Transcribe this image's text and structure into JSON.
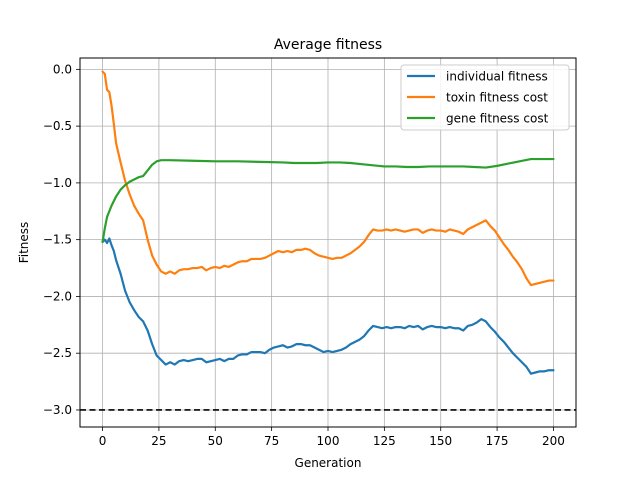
{
  "chart_data": {
    "type": "line",
    "title": "Average fitness",
    "xlabel": "Generation",
    "ylabel": "Fitness",
    "xlim": [
      -10,
      210
    ],
    "ylim": [
      -3.15,
      0.1
    ],
    "xticks": [
      0,
      25,
      50,
      75,
      100,
      125,
      150,
      175,
      200
    ],
    "xtick_labels": [
      "0",
      "25",
      "50",
      "75",
      "100",
      "125",
      "150",
      "175",
      "200"
    ],
    "yticks": [
      0.0,
      -0.5,
      -1.0,
      -1.5,
      -2.0,
      -2.5,
      -3.0
    ],
    "ytick_labels": [
      "0.0",
      "−0.5",
      "−1.0",
      "−1.5",
      "−2.0",
      "−2.5",
      "−3.0"
    ],
    "grid": true,
    "legend_position": "top-right",
    "reference_line": {
      "y": -3.0,
      "style": "dashed",
      "color": "#000000"
    },
    "series": [
      {
        "name": "individual fitness",
        "color": "#1f77b4",
        "x": [
          0,
          1,
          2,
          3,
          4,
          5,
          6,
          8,
          10,
          12,
          14,
          16,
          18,
          20,
          22,
          24,
          26,
          28,
          30,
          32,
          34,
          36,
          38,
          40,
          42,
          44,
          46,
          48,
          50,
          52,
          54,
          56,
          58,
          60,
          62,
          64,
          66,
          68,
          70,
          72,
          74,
          76,
          78,
          80,
          82,
          84,
          86,
          88,
          90,
          92,
          94,
          96,
          98,
          100,
          102,
          104,
          106,
          108,
          110,
          112,
          114,
          116,
          118,
          120,
          122,
          124,
          126,
          128,
          130,
          132,
          134,
          136,
          138,
          140,
          142,
          144,
          146,
          148,
          150,
          152,
          154,
          156,
          158,
          160,
          162,
          164,
          166,
          168,
          170,
          172,
          174,
          176,
          178,
          180,
          182,
          184,
          186,
          188,
          190,
          192,
          194,
          196,
          198,
          200
        ],
        "values": [
          -1.52,
          -1.5,
          -1.53,
          -1.49,
          -1.55,
          -1.6,
          -1.68,
          -1.8,
          -1.95,
          -2.05,
          -2.12,
          -2.18,
          -2.22,
          -2.3,
          -2.42,
          -2.52,
          -2.56,
          -2.6,
          -2.58,
          -2.6,
          -2.57,
          -2.56,
          -2.57,
          -2.56,
          -2.55,
          -2.55,
          -2.58,
          -2.57,
          -2.56,
          -2.55,
          -2.57,
          -2.55,
          -2.55,
          -2.52,
          -2.51,
          -2.51,
          -2.49,
          -2.49,
          -2.49,
          -2.5,
          -2.47,
          -2.45,
          -2.44,
          -2.43,
          -2.45,
          -2.44,
          -2.42,
          -2.42,
          -2.43,
          -2.43,
          -2.45,
          -2.47,
          -2.49,
          -2.48,
          -2.49,
          -2.48,
          -2.47,
          -2.45,
          -2.42,
          -2.4,
          -2.38,
          -2.35,
          -2.3,
          -2.26,
          -2.27,
          -2.28,
          -2.27,
          -2.28,
          -2.27,
          -2.27,
          -2.28,
          -2.26,
          -2.27,
          -2.26,
          -2.29,
          -2.27,
          -2.26,
          -2.27,
          -2.27,
          -2.28,
          -2.27,
          -2.28,
          -2.28,
          -2.3,
          -2.26,
          -2.25,
          -2.23,
          -2.2,
          -2.22,
          -2.27,
          -2.31,
          -2.36,
          -2.4,
          -2.45,
          -2.5,
          -2.54,
          -2.58,
          -2.62,
          -2.68,
          -2.67,
          -2.66,
          -2.66,
          -2.65,
          -2.65
        ]
      },
      {
        "name": "toxin fitness cost",
        "color": "#ff7f0e",
        "x": [
          0,
          1,
          2,
          3,
          4,
          5,
          6,
          8,
          10,
          12,
          14,
          16,
          18,
          20,
          22,
          24,
          26,
          28,
          30,
          32,
          34,
          36,
          38,
          40,
          42,
          44,
          46,
          48,
          50,
          52,
          54,
          56,
          58,
          60,
          62,
          64,
          66,
          68,
          70,
          72,
          74,
          76,
          78,
          80,
          82,
          84,
          86,
          88,
          90,
          92,
          94,
          96,
          98,
          100,
          102,
          104,
          106,
          108,
          110,
          112,
          114,
          116,
          118,
          120,
          122,
          124,
          126,
          128,
          130,
          132,
          134,
          136,
          138,
          140,
          142,
          144,
          146,
          148,
          150,
          152,
          154,
          156,
          158,
          160,
          162,
          164,
          166,
          168,
          170,
          172,
          174,
          176,
          178,
          180,
          182,
          184,
          186,
          188,
          190,
          192,
          194,
          196,
          198,
          200
        ],
        "values": [
          -0.02,
          -0.04,
          -0.18,
          -0.2,
          -0.32,
          -0.48,
          -0.65,
          -0.82,
          -0.98,
          -1.1,
          -1.2,
          -1.27,
          -1.33,
          -1.5,
          -1.64,
          -1.72,
          -1.78,
          -1.8,
          -1.78,
          -1.8,
          -1.77,
          -1.76,
          -1.76,
          -1.75,
          -1.75,
          -1.74,
          -1.77,
          -1.75,
          -1.74,
          -1.75,
          -1.73,
          -1.74,
          -1.72,
          -1.7,
          -1.69,
          -1.69,
          -1.67,
          -1.67,
          -1.67,
          -1.66,
          -1.64,
          -1.62,
          -1.6,
          -1.61,
          -1.6,
          -1.61,
          -1.59,
          -1.59,
          -1.58,
          -1.59,
          -1.62,
          -1.64,
          -1.65,
          -1.66,
          -1.67,
          -1.66,
          -1.66,
          -1.64,
          -1.62,
          -1.59,
          -1.56,
          -1.52,
          -1.46,
          -1.41,
          -1.42,
          -1.42,
          -1.41,
          -1.42,
          -1.41,
          -1.42,
          -1.43,
          -1.42,
          -1.41,
          -1.41,
          -1.44,
          -1.42,
          -1.41,
          -1.42,
          -1.42,
          -1.43,
          -1.41,
          -1.42,
          -1.43,
          -1.45,
          -1.41,
          -1.39,
          -1.37,
          -1.35,
          -1.33,
          -1.38,
          -1.42,
          -1.48,
          -1.54,
          -1.59,
          -1.65,
          -1.7,
          -1.76,
          -1.84,
          -1.9,
          -1.89,
          -1.88,
          -1.87,
          -1.86,
          -1.86
        ]
      },
      {
        "name": "gene fitness cost",
        "color": "#2ca02c",
        "x": [
          0,
          1,
          2,
          4,
          6,
          8,
          10,
          12,
          14,
          16,
          18,
          20,
          22,
          24,
          26,
          28,
          30,
          40,
          50,
          60,
          70,
          80,
          85,
          90,
          95,
          100,
          105,
          110,
          115,
          120,
          125,
          130,
          135,
          140,
          145,
          150,
          155,
          160,
          165,
          170,
          175,
          180,
          185,
          190,
          195,
          200
        ],
        "values": [
          -1.52,
          -1.4,
          -1.3,
          -1.2,
          -1.12,
          -1.06,
          -1.02,
          -0.99,
          -0.97,
          -0.95,
          -0.94,
          -0.89,
          -0.84,
          -0.81,
          -0.8,
          -0.8,
          -0.8,
          -0.805,
          -0.81,
          -0.81,
          -0.815,
          -0.82,
          -0.825,
          -0.825,
          -0.825,
          -0.82,
          -0.82,
          -0.825,
          -0.835,
          -0.845,
          -0.855,
          -0.855,
          -0.86,
          -0.86,
          -0.855,
          -0.855,
          -0.855,
          -0.855,
          -0.86,
          -0.865,
          -0.85,
          -0.83,
          -0.81,
          -0.79,
          -0.79,
          -0.79
        ]
      }
    ]
  }
}
